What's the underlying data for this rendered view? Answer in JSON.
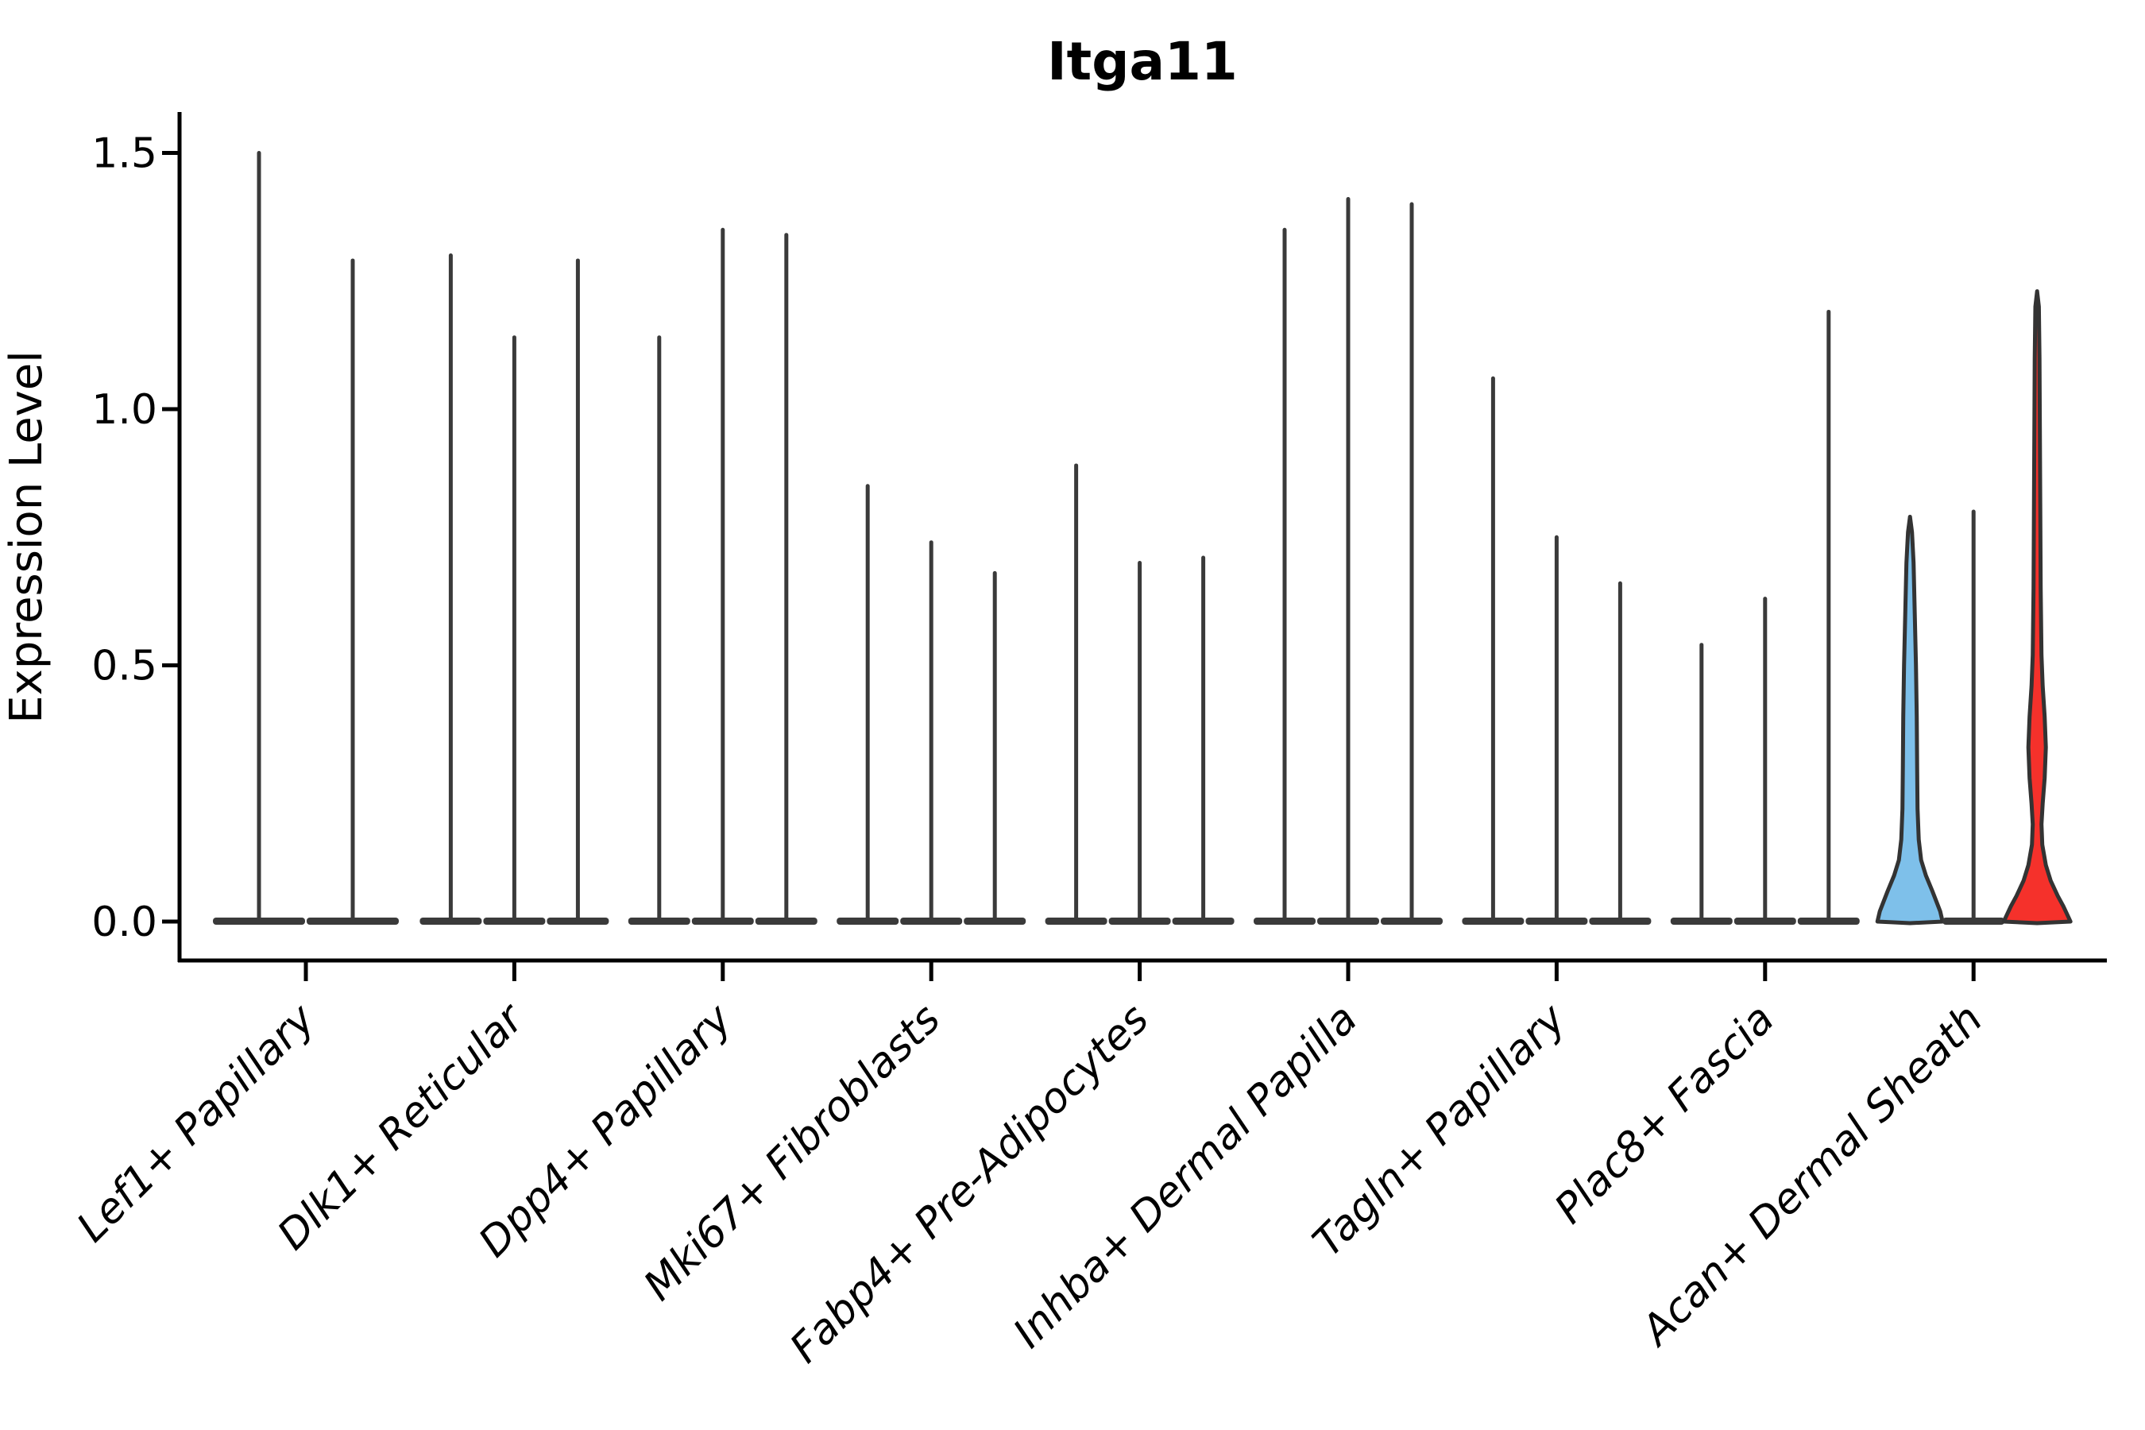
{
  "chart_data": {
    "type": "violin",
    "title": "Itga11",
    "xlabel": "",
    "ylabel": "Expression Level",
    "yticks": [
      0.0,
      0.5,
      1.0,
      1.5
    ],
    "ylim": [
      -0.08,
      1.58
    ],
    "grid": false,
    "legend": "none",
    "colors": {
      "violin_dark": "#3A3A3A",
      "outline": "#333333",
      "axis": "#000000",
      "blue_fill": "#7EC0EA",
      "red_fill": "#F5312B"
    },
    "categories": [
      "Lef1+ Papillary",
      "Dlk1+ Reticular",
      "Dpp4+ Papillary",
      "Mki67+ Fibroblasts",
      "Fabp4+ Pre-Adipocytes",
      "Inhba+ Dermal Papilla",
      "Tagln+ Papillary",
      "Plac8+ Fascia",
      "Acan+ Dermal Sheath"
    ],
    "groups": [
      {
        "label": "Lef1+ Papillary",
        "violins": [
          {
            "max": 1.5
          },
          {
            "max": 1.29
          }
        ]
      },
      {
        "label": "Dlk1+ Reticular",
        "violins": [
          {
            "max": 1.3
          },
          {
            "max": 1.14
          },
          {
            "max": 1.29
          }
        ]
      },
      {
        "label": "Dpp4+ Papillary",
        "violins": [
          {
            "max": 1.14
          },
          {
            "max": 1.35
          },
          {
            "max": 1.34
          }
        ]
      },
      {
        "label": "Mki67+ Fibroblasts",
        "violins": [
          {
            "max": 0.85
          },
          {
            "max": 0.74
          },
          {
            "max": 0.68
          }
        ]
      },
      {
        "label": "Fabp4+ Pre-Adipocytes",
        "violins": [
          {
            "max": 0.89
          },
          {
            "max": 0.7
          },
          {
            "max": 0.71
          }
        ]
      },
      {
        "label": "Inhba+ Dermal Papilla",
        "violins": [
          {
            "max": 1.35
          },
          {
            "max": 1.41
          },
          {
            "max": 1.4
          }
        ]
      },
      {
        "label": "Tagln+ Papillary",
        "violins": [
          {
            "max": 1.06
          },
          {
            "max": 0.75
          },
          {
            "max": 0.66
          }
        ]
      },
      {
        "label": "Plac8+ Fascia",
        "violins": [
          {
            "max": 0.54
          },
          {
            "max": 0.63
          },
          {
            "max": 1.19
          }
        ]
      },
      {
        "label": "Acan+ Dermal Sheath",
        "violins": [
          {
            "max": 0.79,
            "fill": "#7EC0EA",
            "profile": [
              [
                0.79,
                0
              ],
              [
                0.76,
                2.5
              ],
              [
                0.7,
                4.5
              ],
              [
                0.6,
                6
              ],
              [
                0.5,
                7.5
              ],
              [
                0.4,
                8.5
              ],
              [
                0.3,
                9
              ],
              [
                0.22,
                9.5
              ],
              [
                0.16,
                11
              ],
              [
                0.12,
                14
              ],
              [
                0.09,
                20
              ],
              [
                0.06,
                28
              ],
              [
                0.04,
                33
              ],
              [
                0.02,
                38
              ],
              [
                0.0,
                41
              ]
            ]
          },
          {
            "max": 0.8
          },
          {
            "max": 1.23,
            "fill": "#F5312B",
            "profile": [
              [
                1.23,
                0
              ],
              [
                1.2,
                2.2
              ],
              [
                1.1,
                3
              ],
              [
                0.95,
                3.5
              ],
              [
                0.8,
                4
              ],
              [
                0.65,
                4.5
              ],
              [
                0.52,
                5.5
              ],
              [
                0.46,
                7
              ],
              [
                0.4,
                9.5
              ],
              [
                0.34,
                11
              ],
              [
                0.28,
                9.5
              ],
              [
                0.23,
                7
              ],
              [
                0.19,
                5.5
              ],
              [
                0.15,
                6.5
              ],
              [
                0.11,
                11
              ],
              [
                0.08,
                17
              ],
              [
                0.05,
                26
              ],
              [
                0.03,
                33
              ],
              [
                0.01,
                39
              ],
              [
                0.0,
                42
              ]
            ]
          }
        ]
      }
    ]
  }
}
